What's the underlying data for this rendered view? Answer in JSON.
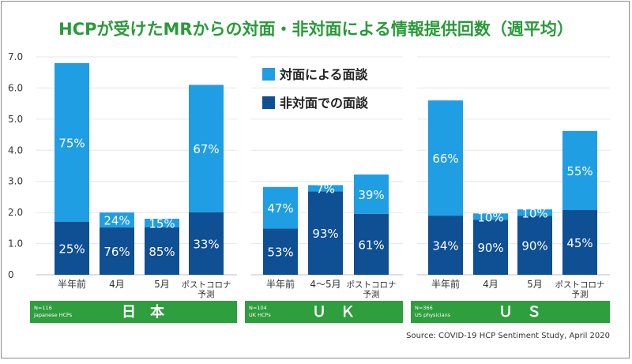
{
  "title": "HCPが受けたMRからの対面・非対面による情報提供回数（週平均）",
  "source": "Source: COVID-19 HCP Sentiment Study, April 2020",
  "legend": [
    {
      "label": "対面による面談",
      "color": "#1f9ee3"
    },
    {
      "label": "非対面での面談",
      "color": "#0f4f94"
    }
  ],
  "colors": {
    "title": "#2a9a3a",
    "face_to_face": "#1f9ee3",
    "remote": "#0f4f94",
    "panel_band": "#2f9e3f",
    "grid": "#e6e6e6",
    "gridline_dark": "#bfbfbf",
    "axis_text": "#333333"
  },
  "chart_data": {
    "type": "bar",
    "stacked": true,
    "ylim": [
      0,
      7
    ],
    "yticks": [
      "0",
      "1.0",
      "2.0",
      "3.0",
      "4.0",
      "5.0",
      "6.0",
      "7.0"
    ],
    "grid": true,
    "legend_position": "top-center",
    "panels": [
      {
        "name": "日　本",
        "note_line1": "N=116",
        "note_line2": "Japanese HCPs",
        "categories": [
          "半年前",
          "4月",
          "5月",
          "ポストコロナ\n予測"
        ],
        "totals": [
          6.8,
          2.0,
          1.8,
          6.1
        ],
        "series": [
          {
            "name": "非対面での面談",
            "values": [
              1.7,
              1.52,
              1.53,
              2.01
            ],
            "pct_labels": [
              "25%",
              "76%",
              "85%",
              "33%"
            ]
          },
          {
            "name": "対面による面談",
            "values": [
              5.1,
              0.48,
              0.27,
              4.09
            ],
            "pct_labels": [
              "75%",
              "24%",
              "15%",
              "67%"
            ]
          }
        ]
      },
      {
        "name": "Ｕ　Ｋ",
        "note_line1": "N=104",
        "note_line2": "UK HCPs",
        "categories": [
          "半年前",
          "4〜5月",
          "ポストコロナ\n予測"
        ],
        "totals": [
          2.82,
          2.88,
          3.22
        ],
        "series": [
          {
            "name": "非対面での面談",
            "values": [
              1.49,
              2.68,
              1.96
            ],
            "pct_labels": [
              "53%",
              "93%",
              "61%"
            ]
          },
          {
            "name": "対面による面談",
            "values": [
              1.33,
              0.2,
              1.26
            ],
            "pct_labels": [
              "47%",
              "7%",
              "39%"
            ]
          }
        ]
      },
      {
        "name": "Ｕ　Ｓ",
        "note_line1": "N=366",
        "note_line2": "US physicians",
        "categories": [
          "半年前",
          "4月",
          "5月",
          "ポストコロナ\n予測"
        ],
        "totals": [
          5.6,
          1.97,
          2.1,
          4.62
        ],
        "series": [
          {
            "name": "非対面での面談",
            "values": [
              1.9,
              1.77,
              1.89,
              2.08
            ],
            "pct_labels": [
              "34%",
              "90%",
              "90%",
              "45%"
            ]
          },
          {
            "name": "対面による面談",
            "values": [
              3.7,
              0.2,
              0.21,
              2.54
            ],
            "pct_labels": [
              "66%",
              "10%",
              "10%",
              "55%"
            ]
          }
        ]
      }
    ]
  }
}
